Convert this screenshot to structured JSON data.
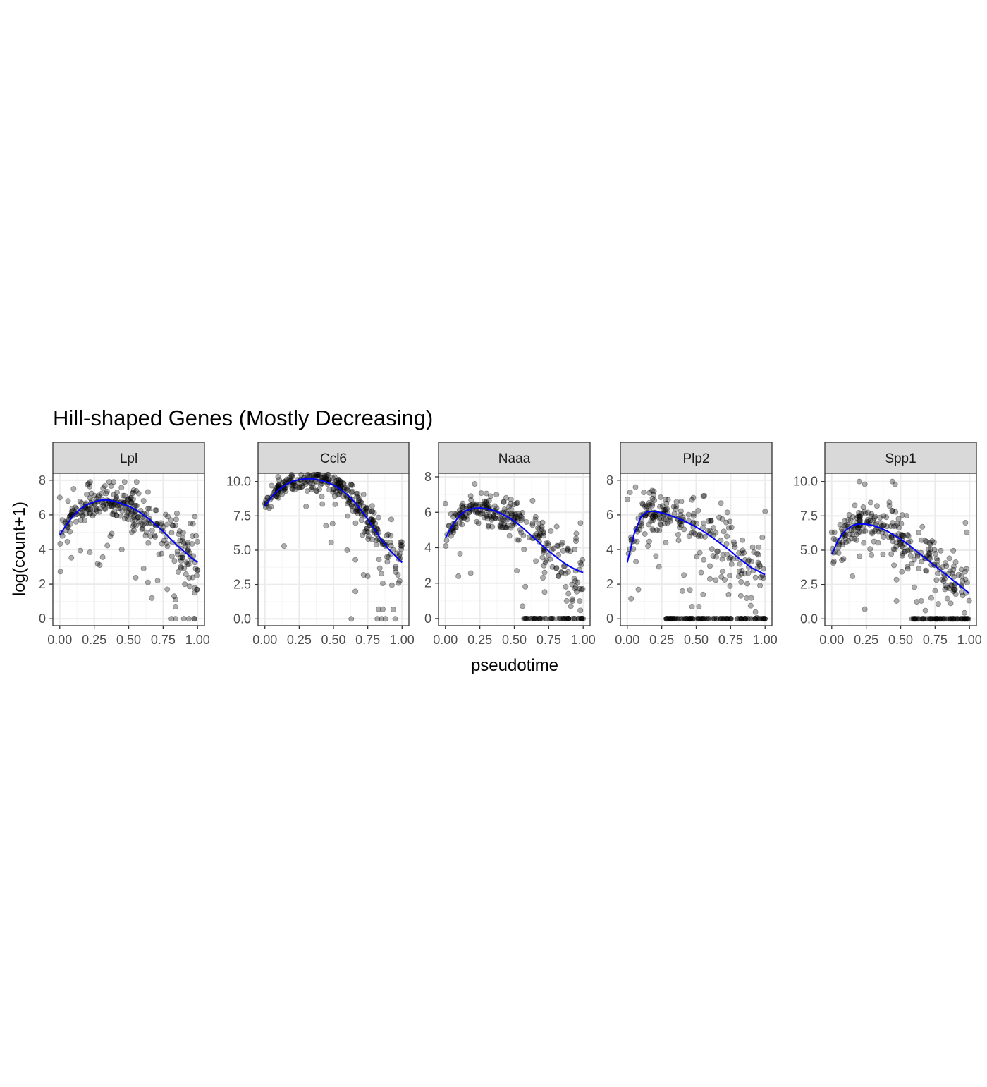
{
  "figure": {
    "title": "Hill-shaped Genes (Mostly Decreasing)",
    "xlabel": "pseudotime",
    "ylabel": "log(count+1)"
  },
  "colors": {
    "background": "#ffffff",
    "panel_border": "#333333",
    "grid_major": "#ebebeb",
    "grid_minor": "#f5f5f5",
    "strip_fill": "#d9d9d9",
    "point": "#000000",
    "trend": "#0000ff",
    "tick_text": "#4d4d4d",
    "text": "#000000"
  },
  "chart_data": [
    {
      "type": "scatter",
      "facet": "Lpl",
      "x_ticks": [
        0.0,
        0.25,
        0.5,
        0.75,
        1.0
      ],
      "x_tick_labels": [
        "0.00",
        "0.25",
        "0.50",
        "0.75",
        "1.00"
      ],
      "y_ticks": [
        0,
        2,
        4,
        6,
        8
      ],
      "y_tick_labels": [
        "0",
        "2",
        "4",
        "6",
        "8"
      ],
      "xlim": [
        -0.05,
        1.05
      ],
      "ylim": [
        -0.4,
        8.4
      ],
      "trend": {
        "x": [
          0,
          0.05,
          0.1,
          0.15,
          0.2,
          0.25,
          0.3,
          0.35,
          0.4,
          0.45,
          0.5,
          0.55,
          0.6,
          0.65,
          0.7,
          0.75,
          0.8,
          0.85,
          0.9,
          0.95,
          1.0
        ],
        "y": [
          4.85,
          5.45,
          5.95,
          6.35,
          6.6,
          6.75,
          6.85,
          6.85,
          6.78,
          6.65,
          6.5,
          6.3,
          6.05,
          5.75,
          5.4,
          5.05,
          4.65,
          4.25,
          3.9,
          3.55,
          3.25
        ]
      },
      "points": {
        "generator": {
          "seed": 11,
          "n": 300,
          "peak": 0.33,
          "peak_value": 6.85,
          "start": 4.85,
          "end": 3.25,
          "spread_early": 0.55,
          "spread_late": 1.3,
          "spread_power": 1.6,
          "low_outlier_prob": 0.04,
          "zero_prob": 0.0,
          "zero_after": 0.8,
          "zero_value": 0.0,
          "ymax": 7.9
        },
        "extra": [
          [
            0.0,
            7.0
          ],
          [
            0.02,
            5.7
          ],
          [
            0.06,
            6.8
          ],
          [
            0.1,
            7.5
          ],
          [
            0.21,
            7.8
          ],
          [
            0.29,
            3.1
          ],
          [
            0.45,
            4.0
          ],
          [
            0.64,
            2.1
          ],
          [
            0.71,
            2.2
          ],
          [
            0.78,
            1.7
          ],
          [
            0.83,
            1.3
          ],
          [
            0.84,
            1.1
          ],
          [
            0.84,
            0.7
          ],
          [
            0.81,
            0.0
          ],
          [
            0.84,
            0.0
          ],
          [
            0.9,
            0.0
          ],
          [
            0.86,
            2.7
          ],
          [
            0.93,
            4.3
          ],
          [
            0.98,
            5.9
          ],
          [
            1.0,
            2.8
          ]
        ]
      }
    },
    {
      "type": "scatter",
      "facet": "Ccl6",
      "x_ticks": [
        0.0,
        0.25,
        0.5,
        0.75,
        1.0
      ],
      "x_tick_labels": [
        "0.00",
        "0.25",
        "0.50",
        "0.75",
        "1.00"
      ],
      "y_ticks": [
        0,
        2.5,
        5.0,
        7.5,
        10.0
      ],
      "y_tick_labels": [
        "0.0",
        "2.5",
        "5.0",
        "7.5",
        "10.0"
      ],
      "xlim": [
        -0.05,
        1.05
      ],
      "ylim": [
        -0.5,
        10.6
      ],
      "trend": {
        "x": [
          0,
          0.05,
          0.1,
          0.15,
          0.2,
          0.25,
          0.3,
          0.35,
          0.4,
          0.45,
          0.5,
          0.55,
          0.6,
          0.65,
          0.7,
          0.75,
          0.8,
          0.85,
          0.9,
          0.95,
          1.0
        ],
        "y": [
          8.2,
          8.9,
          9.4,
          9.75,
          10.0,
          10.15,
          10.2,
          10.2,
          10.1,
          9.95,
          9.75,
          9.45,
          9.05,
          8.55,
          7.95,
          7.25,
          6.5,
          5.75,
          5.1,
          4.6,
          4.1
        ]
      },
      "points": {
        "generator": {
          "seed": 23,
          "n": 320,
          "peak": 0.33,
          "peak_value": 10.2,
          "start": 8.2,
          "end": 4.1,
          "spread_early": 0.45,
          "spread_late": 1.4,
          "spread_power": 2.0,
          "low_outlier_prob": 0.03,
          "zero_prob": 0.0,
          "zero_after": 0.8,
          "zero_value": 0.0,
          "ymax": 10.5
        },
        "extra": [
          [
            0.0,
            8.4
          ],
          [
            0.14,
            5.3
          ],
          [
            0.6,
            5.0
          ],
          [
            0.63,
            0.0
          ],
          [
            0.72,
            3.2
          ],
          [
            0.75,
            3.1
          ],
          [
            0.83,
            0.7
          ],
          [
            0.86,
            0.7
          ],
          [
            0.82,
            0.0
          ],
          [
            0.85,
            0.0
          ],
          [
            0.88,
            0.0
          ],
          [
            0.95,
            0.0
          ],
          [
            0.97,
            3.2
          ],
          [
            0.66,
            2.0
          ],
          [
            0.66,
            4.3
          ]
        ]
      }
    },
    {
      "type": "scatter",
      "facet": "Naaa",
      "x_ticks": [
        0.0,
        0.25,
        0.5,
        0.75,
        1.0
      ],
      "x_tick_labels": [
        "0.00",
        "0.25",
        "0.50",
        "0.75",
        "1.00"
      ],
      "y_ticks": [
        0,
        2,
        4,
        6,
        8
      ],
      "y_tick_labels": [
        "0",
        "2",
        "4",
        "6",
        "8"
      ],
      "xlim": [
        -0.05,
        1.05
      ],
      "ylim": [
        -0.4,
        8.2
      ],
      "trend": {
        "x": [
          0,
          0.05,
          0.1,
          0.15,
          0.2,
          0.25,
          0.3,
          0.35,
          0.4,
          0.45,
          0.5,
          0.55,
          0.6,
          0.65,
          0.7,
          0.75,
          0.8,
          0.85,
          0.9,
          0.95,
          1.0
        ],
        "y": [
          4.55,
          5.25,
          5.8,
          6.1,
          6.22,
          6.25,
          6.2,
          6.1,
          5.95,
          5.75,
          5.5,
          5.2,
          4.85,
          4.5,
          4.15,
          3.8,
          3.5,
          3.2,
          2.95,
          2.75,
          2.6
        ]
      },
      "points": {
        "generator": {
          "seed": 37,
          "n": 320,
          "peak": 0.24,
          "peak_value": 6.25,
          "start": 4.55,
          "end": 2.6,
          "spread_early": 0.5,
          "spread_late": 1.4,
          "spread_power": 1.4,
          "low_outlier_prob": 0.02,
          "zero_prob": 0.16,
          "zero_after": 0.57,
          "zero_value": 0.0,
          "ymax": 7.8
        },
        "extra": [
          [
            0.0,
            6.5
          ],
          [
            0.56,
            0.7
          ],
          [
            0.58,
            1.8
          ],
          [
            0.57,
            3.9
          ],
          [
            0.72,
            2.6
          ],
          [
            0.82,
            2.4
          ],
          [
            0.88,
            1.0
          ],
          [
            0.91,
            0.7
          ],
          [
            0.92,
            1.1
          ],
          [
            0.98,
            5.4
          ],
          [
            0.95,
            4.8
          ],
          [
            0.72,
            1.5
          ]
        ]
      }
    },
    {
      "type": "scatter",
      "facet": "Plp2",
      "x_ticks": [
        0.0,
        0.25,
        0.5,
        0.75,
        1.0
      ],
      "x_tick_labels": [
        "0.00",
        "0.25",
        "0.50",
        "0.75",
        "1.00"
      ],
      "y_ticks": [
        0,
        2,
        4,
        6,
        8
      ],
      "y_tick_labels": [
        "0",
        "2",
        "4",
        "6",
        "8"
      ],
      "xlim": [
        -0.05,
        1.05
      ],
      "ylim": [
        -0.4,
        8.4
      ],
      "trend": {
        "x": [
          0,
          0.05,
          0.1,
          0.15,
          0.2,
          0.25,
          0.3,
          0.35,
          0.4,
          0.45,
          0.5,
          0.55,
          0.6,
          0.65,
          0.7,
          0.75,
          0.8,
          0.85,
          0.9,
          0.95,
          1.0
        ],
        "y": [
          3.25,
          4.9,
          5.9,
          6.2,
          6.2,
          6.12,
          6.0,
          5.85,
          5.7,
          5.5,
          5.3,
          5.05,
          4.8,
          4.5,
          4.2,
          3.9,
          3.55,
          3.25,
          2.95,
          2.75,
          2.55
        ]
      },
      "points": {
        "generator": {
          "seed": 53,
          "n": 330,
          "peak": 0.16,
          "peak_value": 6.2,
          "start": 3.25,
          "end": 2.55,
          "spread_early": 0.6,
          "spread_late": 1.6,
          "spread_power": 1.1,
          "low_outlier_prob": 0.08,
          "zero_prob": 0.18,
          "zero_after": 0.28,
          "zero_value": 0.0,
          "ymax": 7.5
        },
        "extra": [
          [
            0.0,
            6.9
          ],
          [
            0.02,
            7.3
          ],
          [
            0.06,
            7.6
          ],
          [
            0.12,
            7.3
          ],
          [
            0.18,
            7.4
          ],
          [
            0.08,
            5.8
          ],
          [
            0.15,
            4.2
          ],
          [
            0.23,
            3.0
          ],
          [
            0.28,
            4.4
          ],
          [
            0.4,
            1.6
          ],
          [
            0.47,
            0.7
          ],
          [
            0.52,
            0.7
          ],
          [
            0.55,
            1.4
          ],
          [
            0.6,
            2.3
          ],
          [
            0.9,
            1.2
          ],
          [
            0.95,
            3.7
          ],
          [
            0.98,
            4.7
          ],
          [
            1.0,
            6.2
          ]
        ]
      }
    },
    {
      "type": "scatter",
      "facet": "Spp1",
      "x_ticks": [
        0.0,
        0.25,
        0.5,
        0.75,
        1.0
      ],
      "x_tick_labels": [
        "0.00",
        "0.25",
        "0.50",
        "0.75",
        "1.00"
      ],
      "y_ticks": [
        0,
        2.5,
        5.0,
        7.5,
        10.0
      ],
      "y_tick_labels": [
        "0.0",
        "2.5",
        "5.0",
        "7.5",
        "10.0"
      ],
      "xlim": [
        -0.05,
        1.05
      ],
      "ylim": [
        -0.5,
        10.6
      ],
      "trend": {
        "x": [
          0,
          0.05,
          0.1,
          0.15,
          0.2,
          0.25,
          0.3,
          0.35,
          0.4,
          0.45,
          0.5,
          0.55,
          0.6,
          0.65,
          0.7,
          0.75,
          0.8,
          0.85,
          0.9,
          0.95,
          1.0
        ],
        "y": [
          4.7,
          5.8,
          6.45,
          6.8,
          6.92,
          6.9,
          6.8,
          6.62,
          6.4,
          6.12,
          5.8,
          5.45,
          5.05,
          4.65,
          4.25,
          3.85,
          3.45,
          3.05,
          2.65,
          2.25,
          1.85
        ]
      },
      "points": {
        "generator": {
          "seed": 71,
          "n": 330,
          "peak": 0.21,
          "peak_value": 6.9,
          "start": 4.7,
          "end": 1.85,
          "spread_early": 0.9,
          "spread_late": 1.5,
          "spread_power": 1.0,
          "low_outlier_prob": 0.04,
          "zero_prob": 0.2,
          "zero_after": 0.58,
          "zero_value": 0.0,
          "ymax": 10.0
        },
        "extra": [
          [
            0.0,
            6.3
          ],
          [
            0.02,
            6.3
          ],
          [
            0.05,
            4.8
          ],
          [
            0.2,
            10.0
          ],
          [
            0.24,
            9.8
          ],
          [
            0.44,
            10.0
          ],
          [
            0.46,
            9.8
          ],
          [
            0.15,
            3.1
          ],
          [
            0.24,
            0.7
          ],
          [
            0.47,
            1.3
          ],
          [
            0.55,
            3.8
          ],
          [
            0.6,
            2.3
          ],
          [
            0.65,
            1.3
          ],
          [
            0.68,
            0.6
          ],
          [
            0.9,
            1.8
          ],
          [
            0.97,
            7.0
          ],
          [
            0.98,
            6.3
          ],
          [
            0.95,
            1.7
          ]
        ]
      }
    }
  ]
}
